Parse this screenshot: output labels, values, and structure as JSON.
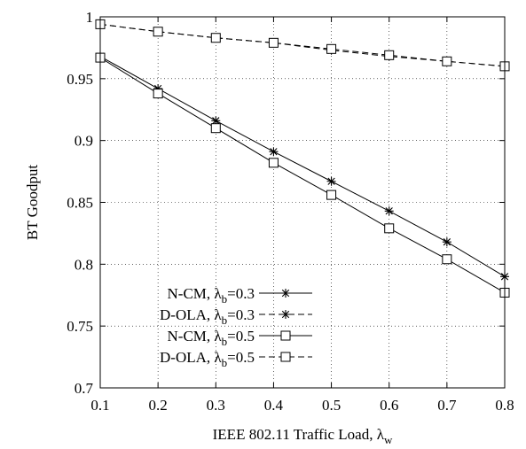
{
  "chart_data": {
    "type": "line",
    "xlabel": "IEEE 802.11 Traffic Load, λ",
    "xlabel_sub": "w",
    "ylabel": "BT Goodput",
    "xlim": [
      0.1,
      0.8
    ],
    "ylim": [
      0.7,
      1.0
    ],
    "xticks": [
      "0.1",
      "0.2",
      "0.3",
      "0.4",
      "0.5",
      "0.6",
      "0.7",
      "0.8"
    ],
    "yticks": [
      "0.7",
      "0.75",
      "0.8",
      "0.85",
      "0.9",
      "0.95",
      "1"
    ],
    "grid": true,
    "legend_position": "bottom-left",
    "x": [
      0.1,
      0.2,
      0.3,
      0.4,
      0.5,
      0.6,
      0.7,
      0.8
    ],
    "series": [
      {
        "legend_prefix": "N-CM,  ",
        "legend_lambda": "λ",
        "legend_sub": "b",
        "legend_suffix": "=0.3",
        "marker": "asterisk",
        "dash": "solid",
        "values": [
          0.968,
          0.942,
          0.916,
          0.891,
          0.867,
          0.843,
          0.818,
          0.79
        ]
      },
      {
        "legend_prefix": "D-OLA, ",
        "legend_lambda": "λ",
        "legend_sub": "b",
        "legend_suffix": "=0.3",
        "marker": "asterisk",
        "dash": "dashed",
        "values": [
          0.994,
          0.988,
          0.983,
          0.979,
          0.973,
          0.968,
          0.964,
          0.96
        ]
      },
      {
        "legend_prefix": "N-CM,  ",
        "legend_lambda": "λ",
        "legend_sub": "b",
        "legend_suffix": "=0.5",
        "marker": "square",
        "dash": "solid",
        "values": [
          0.967,
          0.938,
          0.91,
          0.882,
          0.856,
          0.829,
          0.804,
          0.777
        ]
      },
      {
        "legend_prefix": "D-OLA, ",
        "legend_lambda": "λ",
        "legend_sub": "b",
        "legend_suffix": "=0.5",
        "marker": "square",
        "dash": "dashed",
        "values": [
          0.994,
          0.988,
          0.983,
          0.979,
          0.974,
          0.969,
          0.964,
          0.96
        ]
      }
    ]
  }
}
